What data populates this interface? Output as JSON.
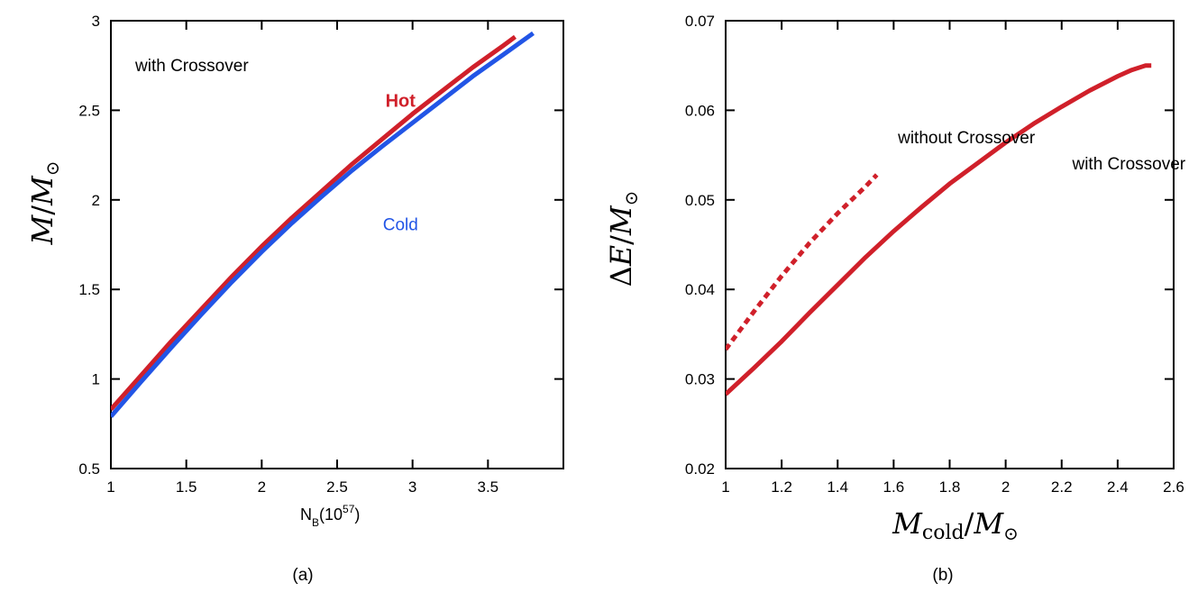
{
  "colors": {
    "hot": "#d0202a",
    "cold": "#2255e6",
    "axis": "#000000"
  },
  "chart_data": [
    {
      "id": "a",
      "type": "line",
      "caption": "(a)",
      "annotation": "with Crossover",
      "xlabel_main": "N",
      "xlabel_sub": "B",
      "xlabel_paren": "(10",
      "xlabel_exp": "57",
      "xlabel_close": ")",
      "ylabel_M": "M",
      "ylabel_slash": "/",
      "ylabel_Msun": "M",
      "ylabel_sun": "⊙",
      "xlim": [
        1,
        4
      ],
      "ylim": [
        0.5,
        3
      ],
      "xticks": [
        1,
        1.5,
        2,
        2.5,
        3,
        3.5
      ],
      "xtick_labels": [
        "1",
        "1.5",
        "2",
        "2.5",
        "3",
        "3.5"
      ],
      "yticks": [
        0.5,
        1,
        1.5,
        2,
        2.5,
        3
      ],
      "ytick_labels": [
        "0.5",
        "1",
        "1.5",
        "2",
        "2.5",
        "3"
      ],
      "series": [
        {
          "name": "Hot",
          "color": "#d0202a",
          "x": [
            1.0,
            1.2,
            1.4,
            1.6,
            1.8,
            2.0,
            2.2,
            2.4,
            2.6,
            2.8,
            3.0,
            3.2,
            3.4,
            3.6,
            3.68
          ],
          "y": [
            0.83,
            1.02,
            1.21,
            1.39,
            1.57,
            1.74,
            1.9,
            2.05,
            2.2,
            2.34,
            2.48,
            2.61,
            2.74,
            2.86,
            2.91
          ]
        },
        {
          "name": "Cold",
          "color": "#2255e6",
          "x": [
            1.0,
            1.2,
            1.4,
            1.6,
            1.8,
            2.0,
            2.2,
            2.4,
            2.6,
            2.8,
            3.0,
            3.2,
            3.4,
            3.6,
            3.8
          ],
          "y": [
            0.79,
            0.985,
            1.175,
            1.36,
            1.54,
            1.71,
            1.87,
            2.02,
            2.165,
            2.3,
            2.43,
            2.56,
            2.69,
            2.81,
            2.93
          ]
        }
      ],
      "labels": [
        {
          "text": "Hot",
          "color": "#d0202a",
          "x": 2.92,
          "y": 2.52
        },
        {
          "text": "Cold",
          "color": "#2255e6",
          "x": 2.92,
          "y": 1.83
        }
      ]
    },
    {
      "id": "b",
      "type": "line",
      "caption": "(b)",
      "xlabel_M": "M",
      "xlabel_sub": "cold",
      "xlabel_slash": "/",
      "xlabel_Msun": "M",
      "xlabel_sun": "⊙",
      "ylabel_delta": "Δ",
      "ylabel_E": "E",
      "ylabel_slash": "/",
      "ylabel_Msun": "M",
      "ylabel_sun": "⊙",
      "xlim": [
        1,
        2.6
      ],
      "ylim": [
        0.02,
        0.07
      ],
      "xticks": [
        1,
        1.2,
        1.4,
        1.6,
        1.8,
        2,
        2.2,
        2.4,
        2.6
      ],
      "xtick_labels": [
        "1",
        "1.2",
        "1.4",
        "1.6",
        "1.8",
        "2",
        "2.2",
        "2.4",
        "2.6"
      ],
      "yticks": [
        0.02,
        0.03,
        0.04,
        0.05,
        0.06,
        0.07
      ],
      "ytick_labels": [
        "0.02",
        "0.03",
        "0.04",
        "0.05",
        "0.06",
        "0.07"
      ],
      "series": [
        {
          "name": "with Crossover",
          "style": "solid",
          "color": "#d0202a",
          "x": [
            1.0,
            1.1,
            1.2,
            1.3,
            1.4,
            1.5,
            1.6,
            1.7,
            1.8,
            1.9,
            2.0,
            2.1,
            2.2,
            2.3,
            2.4,
            2.45,
            2.5,
            2.52
          ],
          "y": [
            0.0283,
            0.0312,
            0.0342,
            0.0374,
            0.0405,
            0.0436,
            0.0465,
            0.0492,
            0.0518,
            0.0541,
            0.0564,
            0.0585,
            0.0604,
            0.0622,
            0.0638,
            0.0645,
            0.065,
            0.065
          ]
        },
        {
          "name": "without Crossover",
          "style": "dashed",
          "color": "#d0202a",
          "x": [
            1.0,
            1.1,
            1.2,
            1.3,
            1.4,
            1.5,
            1.54
          ],
          "y": [
            0.0333,
            0.0375,
            0.0415,
            0.0452,
            0.0485,
            0.0515,
            0.0528
          ]
        }
      ],
      "labels": [
        {
          "text": "without Crossover",
          "x": 1.86,
          "y": 0.0563
        },
        {
          "text": "with Crossover",
          "x": 2.44,
          "y": 0.0534
        }
      ]
    }
  ]
}
